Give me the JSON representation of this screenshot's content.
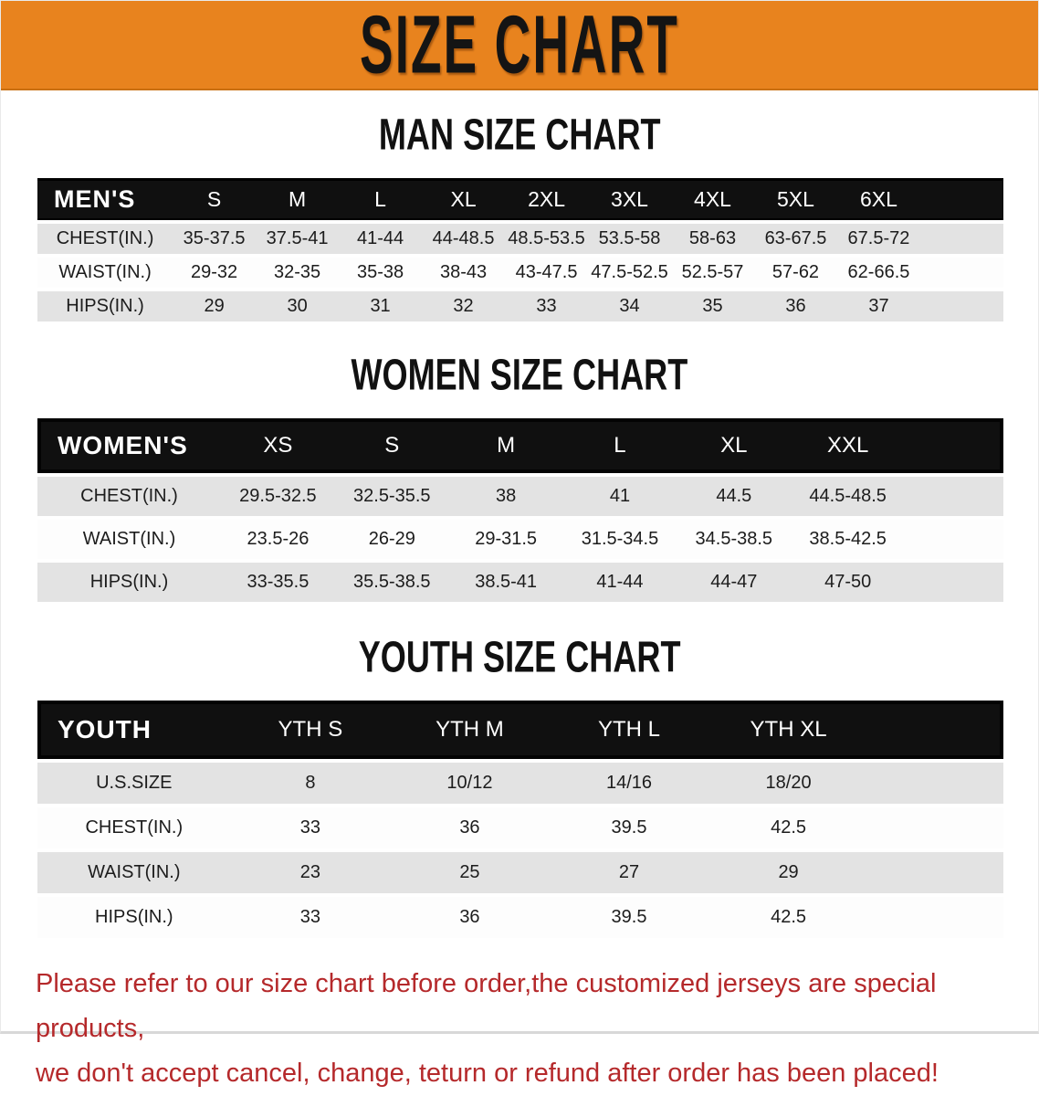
{
  "banner": {
    "title": "SIZE CHART",
    "bg_color": "#E8831E",
    "text_color": "#141414"
  },
  "sections": [
    {
      "heading": "MAN SIZE CHART",
      "group_label": "MEN'S",
      "columns": [
        "S",
        "M",
        "L",
        "XL",
        "2XL",
        "3XL",
        "4XL",
        "5XL",
        "6XL"
      ],
      "rows": [
        {
          "label": "CHEST(IN.)",
          "values": [
            "35-37.5",
            "37.5-41",
            "41-44",
            "44-48.5",
            "48.5-53.5",
            "53.5-58",
            "58-63",
            "63-67.5",
            "67.5-72"
          ]
        },
        {
          "label": "WAIST(IN.)",
          "values": [
            "29-32",
            "32-35",
            "35-38",
            "38-43",
            "43-47.5",
            "47.5-52.5",
            "52.5-57",
            "57-62",
            "62-66.5"
          ]
        },
        {
          "label": "HIPS(IN.)",
          "values": [
            "29",
            "30",
            "31",
            "32",
            "33",
            "34",
            "35",
            "36",
            "37"
          ]
        }
      ]
    },
    {
      "heading": "WOMEN SIZE CHART",
      "group_label": "WOMEN'S",
      "columns": [
        "XS",
        "S",
        "M",
        "L",
        "XL",
        "XXL"
      ],
      "rows": [
        {
          "label": "CHEST(IN.)",
          "values": [
            "29.5-32.5",
            "32.5-35.5",
            "38",
            "41",
            "44.5",
            "44.5-48.5"
          ]
        },
        {
          "label": "WAIST(IN.)",
          "values": [
            "23.5-26",
            "26-29",
            "29-31.5",
            "31.5-34.5",
            "34.5-38.5",
            "38.5-42.5"
          ]
        },
        {
          "label": "HIPS(IN.)",
          "values": [
            "33-35.5",
            "35.5-38.5",
            "38.5-41",
            "41-44",
            "44-47",
            "47-50"
          ]
        }
      ]
    },
    {
      "heading": "YOUTH SIZE CHART",
      "group_label": "YOUTH",
      "columns": [
        "YTH S",
        "YTH M",
        "YTH L",
        "YTH XL"
      ],
      "rows": [
        {
          "label": "U.S.SIZE",
          "values": [
            "8",
            "10/12",
            "14/16",
            "18/20"
          ]
        },
        {
          "label": "CHEST(IN.)",
          "values": [
            "33",
            "36",
            "39.5",
            "42.5"
          ]
        },
        {
          "label": "WAIST(IN.)",
          "values": [
            "23",
            "25",
            "27",
            "29"
          ]
        },
        {
          "label": "HIPS(IN.)",
          "values": [
            "33",
            "36",
            "39.5",
            "42.5"
          ]
        }
      ]
    }
  ],
  "footer_note": {
    "line1": "Please refer to our size chart before order,the customized jerseys are special products,",
    "line2": "we don't accept cancel, change, teturn or refund after order has been placed!",
    "text_color": "#B5292B"
  },
  "colors": {
    "header_bar": "#101010",
    "row_shaded": "#E3E3E3",
    "row_plain": "#FDFDFD"
  }
}
